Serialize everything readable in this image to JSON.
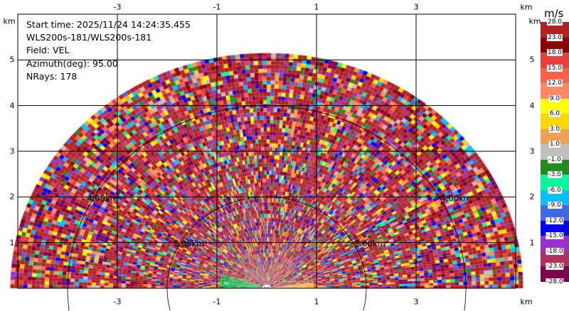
{
  "chart_data": {
    "type": "heatmap",
    "subtype": "radar-rhi",
    "info": {
      "start_time": "Start time: 2025/11/24 14:24:35.455",
      "instrument": "WLS200s-181/WLS200s-181",
      "field": "Field: VEL",
      "azimuth": "Azimuth(deg): 95.00",
      "nrays": "NRays: 178"
    },
    "x_ticks": [
      "-3",
      "-1",
      "1",
      "3"
    ],
    "x_tick_values": [
      -3,
      -1,
      1,
      3
    ],
    "y_ticks": [
      "1",
      "2",
      "3",
      "4",
      "5"
    ],
    "y_tick_values": [
      1,
      2,
      3,
      4,
      5
    ],
    "x_unit": "km",
    "y_unit": "km",
    "xlim": [
      -5,
      5
    ],
    "ylim": [
      0,
      6
    ],
    "max_range_km": 5.15,
    "grid": true,
    "range_rings": [
      {
        "range_km": 2,
        "label": "2.00km"
      },
      {
        "range_km": 4,
        "label": "4.00km"
      }
    ],
    "colorbar": {
      "unit": "m/s",
      "placement": "right",
      "labels": [
        "28.0",
        "23.0",
        "18.0",
        "15.0",
        "12.0",
        "9.0",
        "6.0",
        "3.0",
        "1.0",
        "-1.0",
        "-3.0",
        "-6.0",
        "-9.0",
        "-12.0",
        "-15.0",
        "-18.0",
        "-23.0",
        "-28.0"
      ],
      "colors": [
        "#b22222",
        "#8b0000",
        "#e8403c",
        "#ff6347",
        "#ff8866",
        "#ffff00",
        "#ffd700",
        "#f0a050",
        "#c0c0c0",
        "#228b22",
        "#00fa9a",
        "#00bfff",
        "#4169e1",
        "#0000ff",
        "#9932cc",
        "#b03060",
        "#800050"
      ]
    }
  }
}
